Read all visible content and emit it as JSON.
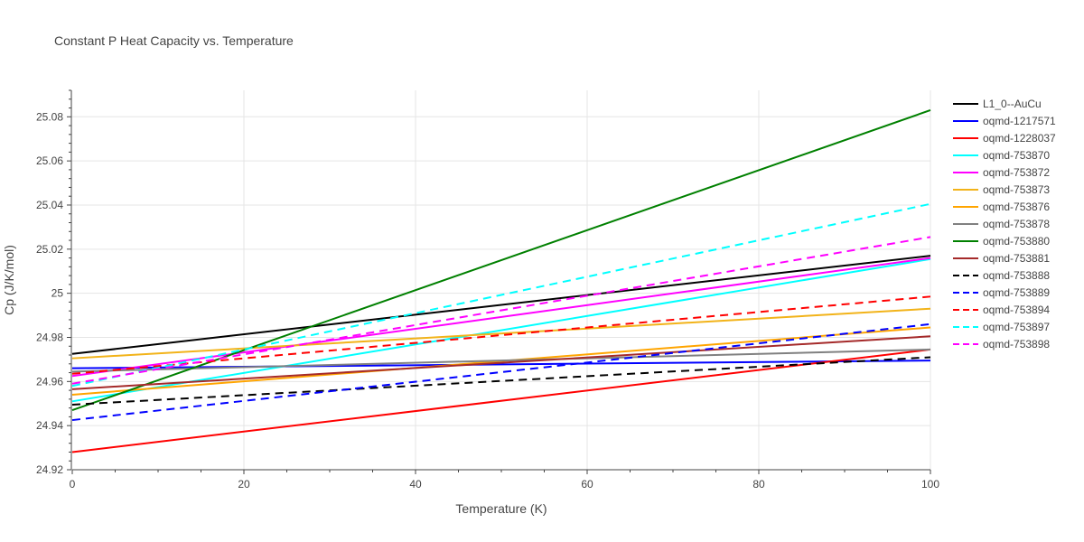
{
  "chart_data": {
    "type": "line",
    "title": "Constant P Heat Capacity vs. Temperature",
    "xlabel": "Temperature (K)",
    "ylabel": "Cp (J/K/mol)",
    "xlim": [
      0,
      100
    ],
    "ylim": [
      24.92,
      25.092
    ],
    "x_ticks": [
      0,
      20,
      40,
      60,
      80,
      100
    ],
    "x_tick_labels": [
      "0",
      "20",
      "40",
      "60",
      "80",
      "100"
    ],
    "y_ticks": [
      24.92,
      24.94,
      24.96,
      24.98,
      25.0,
      25.02,
      25.04,
      25.06,
      25.08
    ],
    "y_tick_labels": [
      "24.92",
      "24.94",
      "24.96",
      "24.98",
      "25",
      "25.02",
      "25.04",
      "25.06",
      "25.08"
    ],
    "grid": true,
    "legend_position": "right",
    "series": [
      {
        "name": "L1_0--AuCu",
        "color": "#000000",
        "dash": "solid",
        "x": [
          0,
          100
        ],
        "y": [
          24.9725,
          25.017
        ]
      },
      {
        "name": "oqmd-1217571",
        "color": "#0000ff",
        "dash": "solid",
        "x": [
          0,
          100
        ],
        "y": [
          24.966,
          24.9695
        ]
      },
      {
        "name": "oqmd-1228037",
        "color": "#ff0000",
        "dash": "solid",
        "x": [
          0,
          100
        ],
        "y": [
          24.928,
          24.9745
        ]
      },
      {
        "name": "oqmd-753870",
        "color": "#00ffff",
        "dash": "solid",
        "x": [
          0,
          100
        ],
        "y": [
          24.951,
          25.0155
        ]
      },
      {
        "name": "oqmd-753872",
        "color": "#ff00ff",
        "dash": "solid",
        "x": [
          0,
          100
        ],
        "y": [
          24.9625,
          25.016
        ]
      },
      {
        "name": "oqmd-753873",
        "color": "#f2b319",
        "dash": "solid",
        "x": [
          0,
          100
        ],
        "y": [
          24.9705,
          24.993
        ]
      },
      {
        "name": "oqmd-753876",
        "color": "#ffa500",
        "dash": "solid",
        "x": [
          0,
          100
        ],
        "y": [
          24.954,
          24.9845
        ]
      },
      {
        "name": "oqmd-753878",
        "color": "#808080",
        "dash": "solid",
        "x": [
          0,
          100
        ],
        "y": [
          24.9645,
          24.9745
        ]
      },
      {
        "name": "oqmd-753880",
        "color": "#008000",
        "dash": "solid",
        "x": [
          0,
          100
        ],
        "y": [
          24.947,
          25.083
        ]
      },
      {
        "name": "oqmd-753881",
        "color": "#a52a2a",
        "dash": "solid",
        "x": [
          0,
          100
        ],
        "y": [
          24.9565,
          24.9805
        ]
      },
      {
        "name": "oqmd-753888",
        "color": "#000000",
        "dash": "dash",
        "x": [
          0,
          100
        ],
        "y": [
          24.9495,
          24.971
        ]
      },
      {
        "name": "oqmd-753889",
        "color": "#0000ff",
        "dash": "dash",
        "x": [
          0,
          100
        ],
        "y": [
          24.9425,
          24.986
        ]
      },
      {
        "name": "oqmd-753894",
        "color": "#ff0000",
        "dash": "dash",
        "x": [
          0,
          100
        ],
        "y": [
          24.9635,
          24.9985
        ]
      },
      {
        "name": "oqmd-753897",
        "color": "#00ffff",
        "dash": "dash",
        "x": [
          0,
          100
        ],
        "y": [
          24.958,
          25.0405
        ]
      },
      {
        "name": "oqmd-753898",
        "color": "#ff00ff",
        "dash": "dash",
        "x": [
          0,
          100
        ],
        "y": [
          24.959,
          25.0255
        ]
      }
    ]
  }
}
